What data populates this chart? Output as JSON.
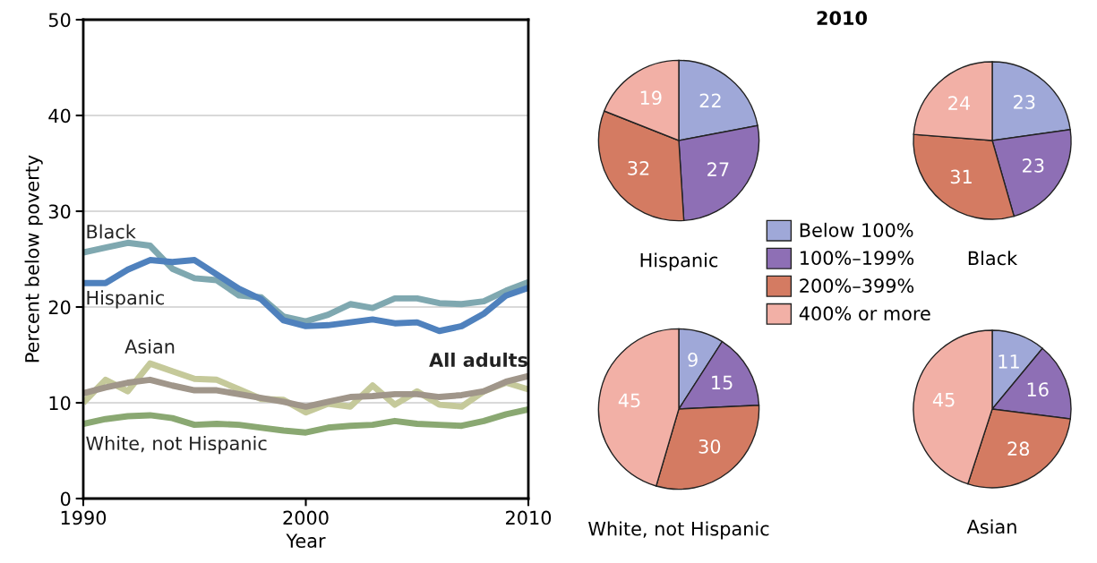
{
  "chart_data": [
    {
      "type": "line",
      "xlabel": "Year",
      "ylabel": "Percent below poverty",
      "xlim": [
        1990,
        2010
      ],
      "xticks": [
        1990,
        2000,
        2010
      ],
      "ylim": [
        0,
        50
      ],
      "yticks": [
        0,
        10,
        20,
        30,
        40,
        50
      ],
      "grid": "y",
      "legend": false,
      "marker": "none",
      "line_style": "solid",
      "x": [
        1990,
        1991,
        1992,
        1993,
        1994,
        1995,
        1996,
        1997,
        1998,
        1999,
        2000,
        2001,
        2002,
        2003,
        2004,
        2005,
        2006,
        2007,
        2008,
        2009,
        2010
      ],
      "series": [
        {
          "name": "Black",
          "color": "#7fa8b0",
          "values": [
            25.7,
            26.2,
            26.7,
            26.4,
            24,
            23,
            22.8,
            21.2,
            21,
            19,
            18.5,
            19.2,
            20.3,
            19.9,
            20.9,
            20.9,
            20.4,
            20.3,
            20.6,
            21.7,
            22.6
          ]
        },
        {
          "name": "Hispanic",
          "color": "#4f81bd",
          "values": [
            22.5,
            22.5,
            23.9,
            24.9,
            24.7,
            24.9,
            23.4,
            21.9,
            20.8,
            18.6,
            18,
            18.1,
            18.4,
            18.7,
            18.3,
            18.4,
            17.5,
            18,
            19.3,
            21.2,
            22
          ]
        },
        {
          "name": "Asian",
          "color": "#c5c99a",
          "values": [
            10,
            12.4,
            11.2,
            14.1,
            13.3,
            12.5,
            12.4,
            11.4,
            10.4,
            10.3,
            9,
            9.9,
            9.6,
            11.8,
            9.8,
            11.2,
            9.8,
            9.6,
            11.2,
            12.1,
            11.4
          ]
        },
        {
          "name": "All adults",
          "color": "#a0968a",
          "values": [
            11,
            11.6,
            12.1,
            12.4,
            11.8,
            11.3,
            11.3,
            10.9,
            10.5,
            10.1,
            9.6,
            10.1,
            10.6,
            10.7,
            10.9,
            10.9,
            10.6,
            10.8,
            11.2,
            12.2,
            12.8
          ]
        },
        {
          "name": "White, not Hispanic",
          "color": "#8aa872",
          "values": [
            7.8,
            8.3,
            8.6,
            8.7,
            8.4,
            7.7,
            7.8,
            7.7,
            7.4,
            7.1,
            6.9,
            7.4,
            7.6,
            7.7,
            8.1,
            7.8,
            7.7,
            7.6,
            8.1,
            8.8,
            9.3
          ]
        }
      ]
    },
    {
      "type": "pie",
      "title": "Hispanic",
      "annotations": [
        "2010"
      ],
      "legend": "right",
      "data_labels": true,
      "categories": [
        "Below 100%",
        "100%–199%",
        "200%–399%",
        "400% or more"
      ],
      "values": [
        22,
        27,
        32,
        19
      ],
      "colors": [
        "#9fa8d8",
        "#8e6fb5",
        "#d47b62",
        "#f2b0a6"
      ]
    },
    {
      "type": "pie",
      "title": "Black",
      "data_labels": true,
      "values": [
        23,
        23,
        31,
        24
      ],
      "colors": [
        "#9fa8d8",
        "#8e6fb5",
        "#d47b62",
        "#f2b0a6"
      ]
    },
    {
      "type": "pie",
      "title": "White, not Hispanic",
      "data_labels": true,
      "values": [
        9,
        15,
        30,
        45
      ],
      "colors": [
        "#9fa8d8",
        "#8e6fb5",
        "#d47b62",
        "#f2b0a6"
      ]
    },
    {
      "type": "pie",
      "title": "Asian",
      "data_labels": true,
      "values": [
        11,
        16,
        28,
        45
      ],
      "colors": [
        "#9fa8d8",
        "#8e6fb5",
        "#d47b62",
        "#f2b0a6"
      ]
    }
  ]
}
